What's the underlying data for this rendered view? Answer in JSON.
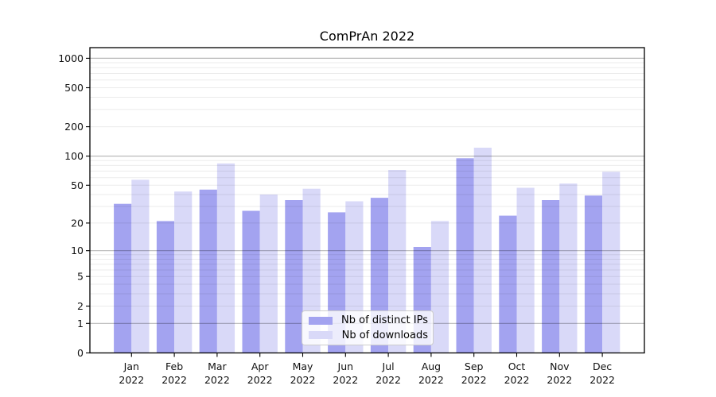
{
  "chart_data": {
    "type": "bar",
    "title": "ComPrAn 2022",
    "scale": "symlog",
    "categories": [
      "Jan",
      "Feb",
      "Mar",
      "Apr",
      "May",
      "Jun",
      "Jul",
      "Aug",
      "Sep",
      "Oct",
      "Nov",
      "Dec"
    ],
    "category_year": "2022",
    "series": [
      {
        "name": "Nb of distinct IPs",
        "color": "#a3a3f0",
        "values": [
          32,
          21,
          45,
          27,
          35,
          26,
          37,
          11,
          95,
          24,
          35,
          39
        ]
      },
      {
        "name": "Nb of downloads",
        "color": "#d9d9f8",
        "values": [
          57,
          43,
          84,
          40,
          46,
          34,
          72,
          21,
          122,
          47,
          52,
          69
        ]
      }
    ],
    "y_ticks": [
      0,
      1,
      2,
      5,
      10,
      20,
      50,
      100,
      200,
      500,
      1000
    ],
    "y_minor_gridlines": [
      2,
      3,
      4,
      5,
      6,
      7,
      8,
      9,
      20,
      30,
      40,
      50,
      60,
      70,
      80,
      90,
      200,
      300,
      400,
      500,
      600,
      700,
      800,
      900
    ],
    "y_major_gridlines": [
      1,
      10,
      100,
      1000
    ],
    "ylim": [
      0,
      1280
    ],
    "grid": true,
    "grid_above_bars": true,
    "legend": {
      "position": "lower center",
      "entries": [
        "Nb of distinct IPs",
        "Nb of downloads"
      ]
    }
  }
}
